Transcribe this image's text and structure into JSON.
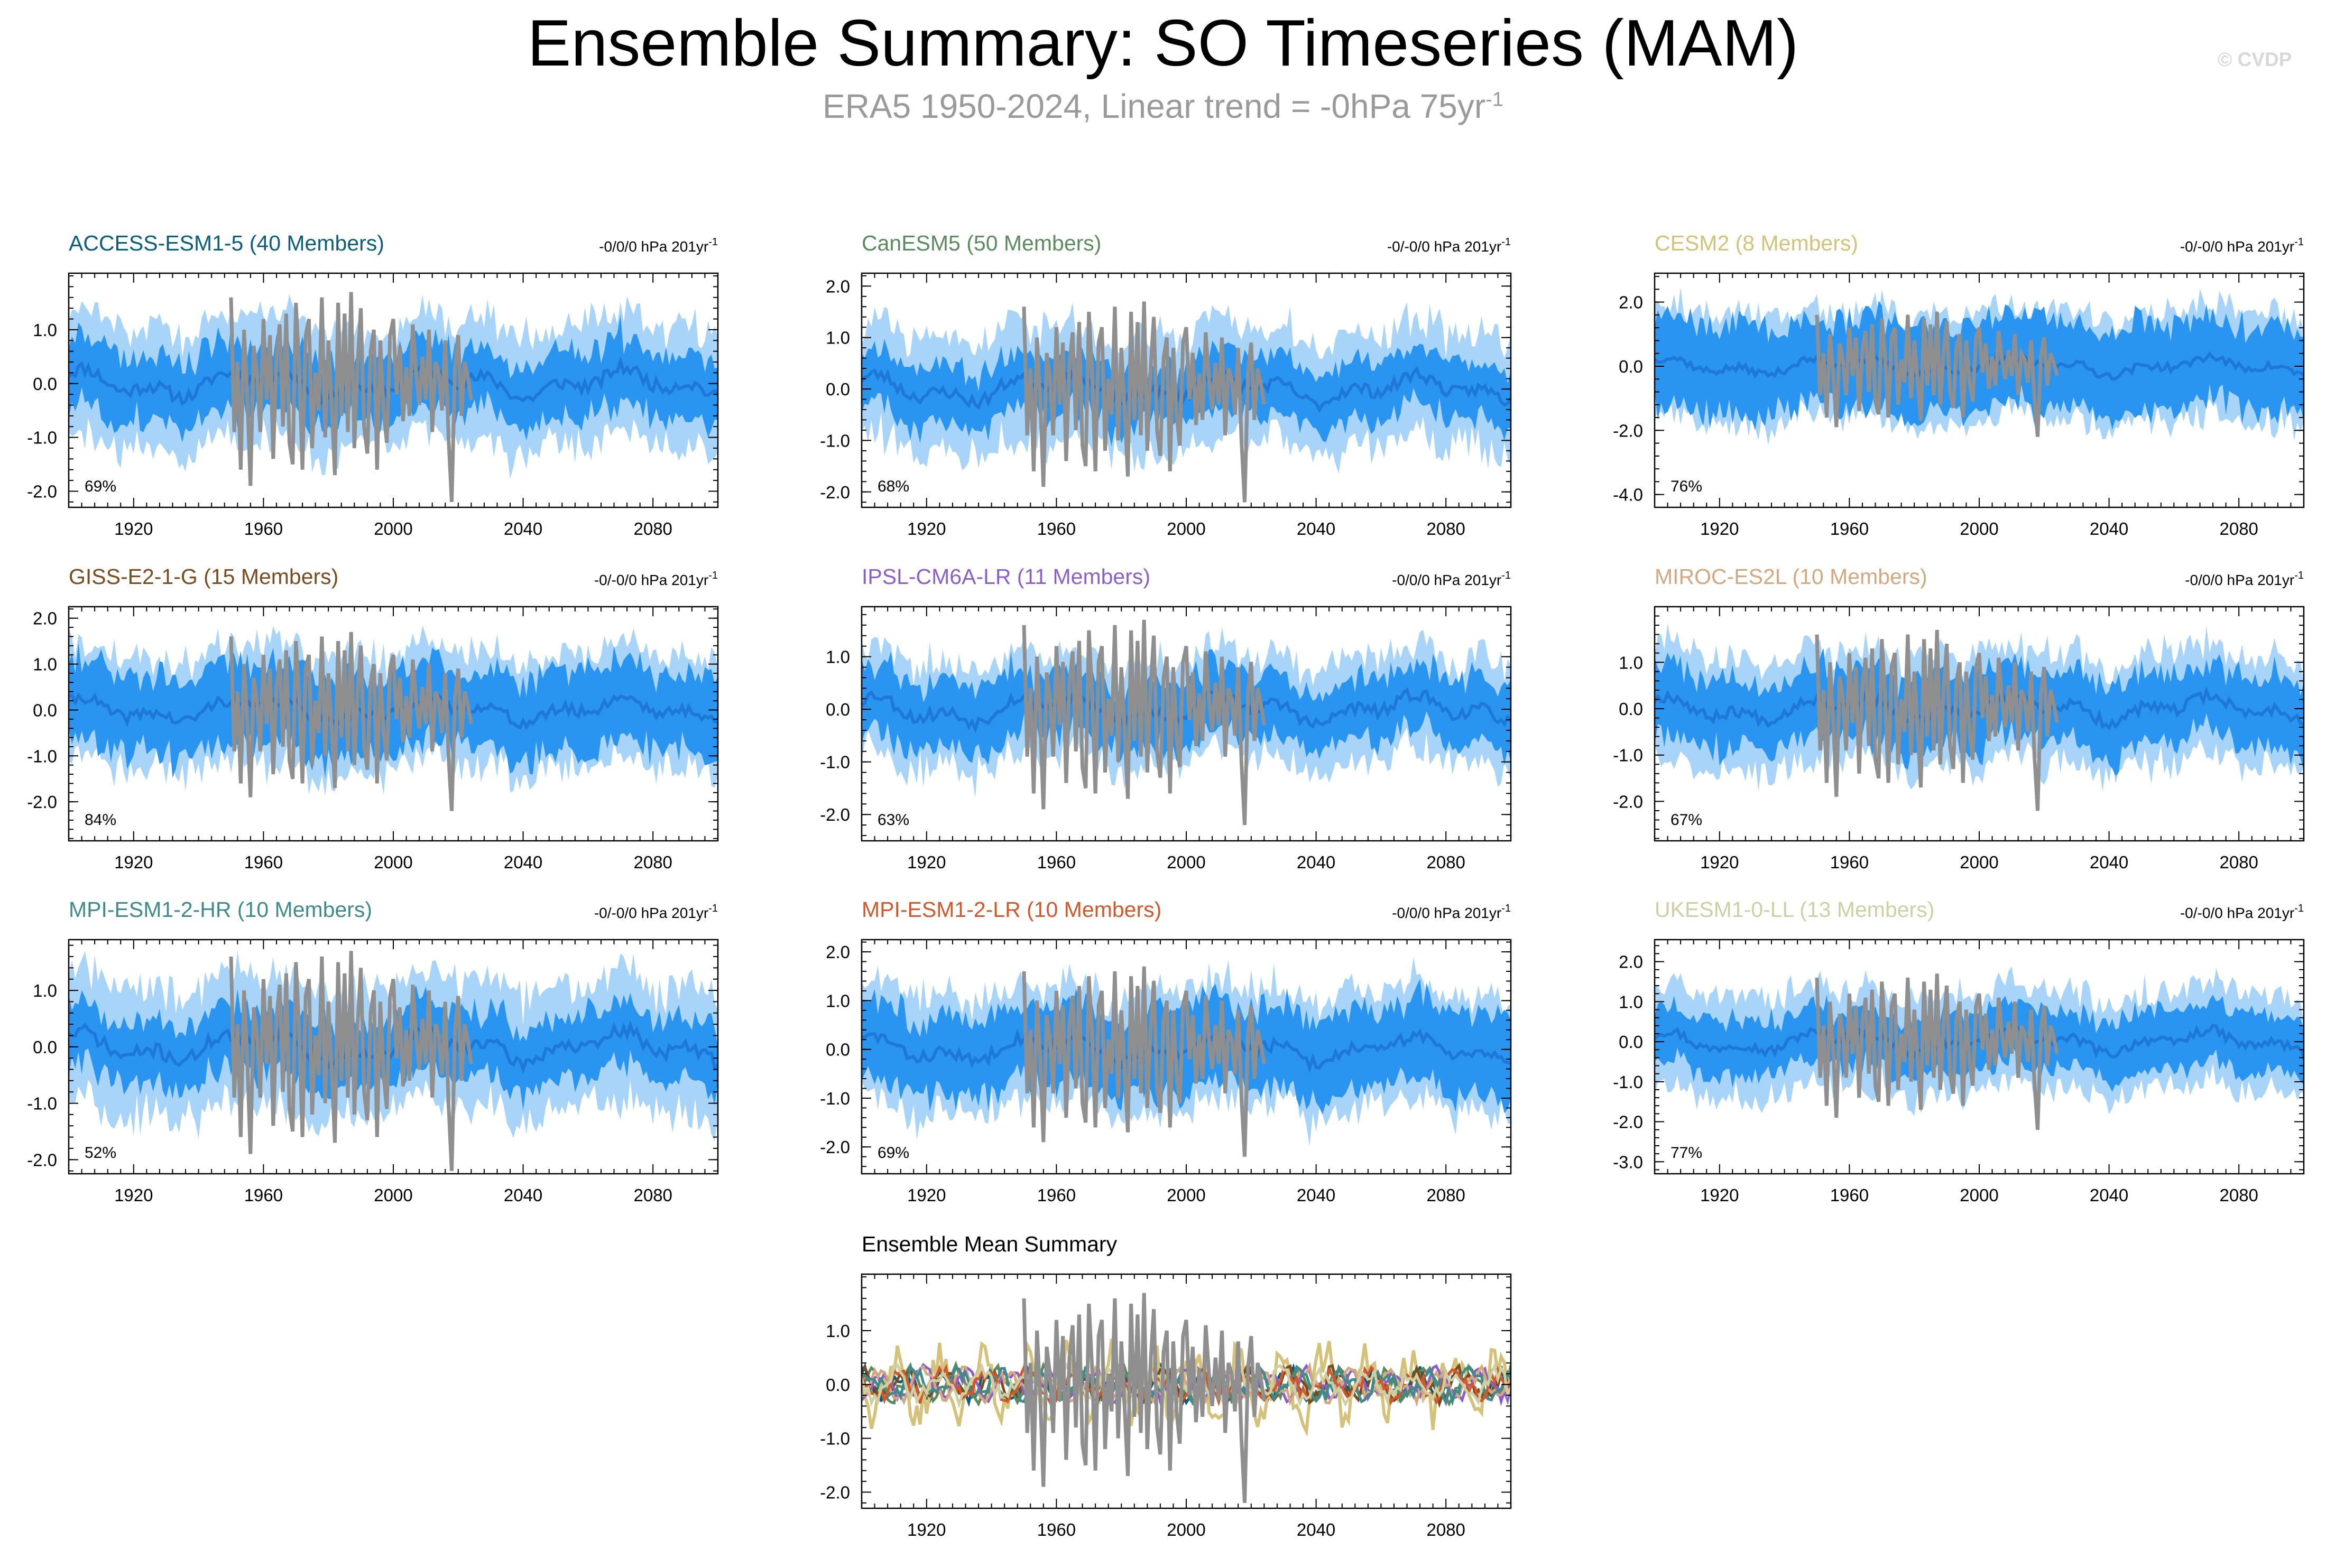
{
  "header": {
    "title": "Ensemble Summary: SO Timeseries (MAM)",
    "subtitle_main": "ERA5 1950-2024, Linear trend = -0hPa 75yr",
    "subtitle_exp": "-1",
    "copyright": "© CVDP"
  },
  "colors": {
    "band_outer": "#a9d4fa",
    "band_inner": "#2a95f0",
    "ens_mean": "#1e78d8",
    "obs": "#8f8f8f",
    "axis": "#000000"
  },
  "chart_data": [
    {
      "type": "area",
      "title": "ACCESS-ESM1-5 (40 Members)",
      "title_color": "#0b5d7a",
      "trend_label": "-0/0/0 hPa 201yr",
      "trend_exp": "-1",
      "pct_label": "69%",
      "xlim": [
        1900,
        2100
      ],
      "ylim": [
        -2.3,
        2.05
      ],
      "yticks": [
        1.0,
        0.0,
        -1.0,
        -2.0
      ],
      "ytick_labels": [
        "1.0",
        "0.0",
        "-1.0",
        "-2.0"
      ],
      "xticks": [
        1920,
        1960,
        2000,
        2040,
        2080
      ],
      "xtick_labels": [
        "1920",
        "1960",
        "2000",
        "2040",
        "2080"
      ],
      "outer_half_width": 1.1,
      "inner_half_width": 0.6,
      "seed": 11
    },
    {
      "type": "area",
      "title": "CanESM5 (50 Members)",
      "title_color": "#5b8a5e",
      "trend_label": "-0/-0/0 hPa 201yr",
      "trend_exp": "-1",
      "pct_label": "68%",
      "xlim": [
        1900,
        2100
      ],
      "ylim": [
        -2.3,
        2.25
      ],
      "yticks": [
        2.0,
        1.0,
        0.0,
        -1.0,
        -2.0
      ],
      "ytick_labels": [
        "2.0",
        "1.0",
        "0.0",
        "-1.0",
        "-2.0"
      ],
      "xticks": [
        1920,
        1960,
        2000,
        2040,
        2080
      ],
      "xtick_labels": [
        "1920",
        "1960",
        "2000",
        "2040",
        "2080"
      ],
      "outer_half_width": 1.1,
      "inner_half_width": 0.55,
      "seed": 23
    },
    {
      "type": "area",
      "title": "CESM2 (8 Members)",
      "title_color": "#d4c27a",
      "trend_label": "-0/-0/0 hPa 201yr",
      "trend_exp": "-1",
      "pct_label": "76%",
      "xlim": [
        1900,
        2100
      ],
      "ylim": [
        -4.4,
        2.9
      ],
      "yticks": [
        2.0,
        0.0,
        -2.0,
        -4.0
      ],
      "ytick_labels": [
        "2.0",
        "0.0",
        "-2.0",
        "-4.0"
      ],
      "xticks": [
        1920,
        1960,
        2000,
        2040,
        2080
      ],
      "xtick_labels": [
        "1920",
        "1960",
        "2000",
        "2040",
        "2080"
      ],
      "outer_half_width": 1.7,
      "inner_half_width": 1.35,
      "seed": 37
    },
    {
      "type": "area",
      "title": "GISS-E2-1-G (15 Members)",
      "title_color": "#7a4b1f",
      "trend_label": "-0/-0/0 hPa 201yr",
      "trend_exp": "-1",
      "pct_label": "84%",
      "xlim": [
        1900,
        2100
      ],
      "ylim": [
        -2.85,
        2.25
      ],
      "yticks": [
        2.0,
        1.0,
        0.0,
        -1.0,
        -2.0
      ],
      "ytick_labels": [
        "2.0",
        "1.0",
        "0.0",
        "-1.0",
        "-2.0"
      ],
      "xticks": [
        1920,
        1960,
        2000,
        2040,
        2080
      ],
      "xtick_labels": [
        "1920",
        "1960",
        "2000",
        "2040",
        "2080"
      ],
      "outer_half_width": 1.25,
      "inner_half_width": 0.85,
      "seed": 41
    },
    {
      "type": "area",
      "title": "IPSL-CM6A-LR (11 Members)",
      "title_color": "#8a5fc7",
      "trend_label": "-0/0/0 hPa 201yr",
      "trend_exp": "-1",
      "pct_label": "63%",
      "xlim": [
        1900,
        2100
      ],
      "ylim": [
        -2.5,
        1.95
      ],
      "yticks": [
        1.0,
        0.0,
        -1.0,
        -2.0
      ],
      "ytick_labels": [
        "1.0",
        "0.0",
        "-1.0",
        "-2.0"
      ],
      "xticks": [
        1920,
        1960,
        2000,
        2040,
        2080
      ],
      "xtick_labels": [
        "1920",
        "1960",
        "2000",
        "2040",
        "2080"
      ],
      "outer_half_width": 1.0,
      "inner_half_width": 0.6,
      "seed": 53
    },
    {
      "type": "area",
      "title": "MIROC-ES2L (10 Members)",
      "title_color": "#d3a77f",
      "trend_label": "-0/0/0 hPa 201yr",
      "trend_exp": "-1",
      "pct_label": "67%",
      "xlim": [
        1900,
        2100
      ],
      "ylim": [
        -2.85,
        2.2
      ],
      "yticks": [
        1.0,
        0.0,
        -1.0,
        -2.0
      ],
      "ytick_labels": [
        "1.0",
        "0.0",
        "-1.0",
        "-2.0"
      ],
      "xticks": [
        1920,
        1960,
        2000,
        2040,
        2080
      ],
      "xtick_labels": [
        "1920",
        "1960",
        "2000",
        "2040",
        "2080"
      ],
      "outer_half_width": 1.2,
      "inner_half_width": 0.75,
      "seed": 67
    },
    {
      "type": "area",
      "title": "MPI-ESM1-2-HR (10 Members)",
      "title_color": "#3e8a8c",
      "trend_label": "-0/-0/0 hPa 201yr",
      "trend_exp": "-1",
      "pct_label": "52%",
      "xlim": [
        1900,
        2100
      ],
      "ylim": [
        -2.25,
        1.9
      ],
      "yticks": [
        1.0,
        0.0,
        -1.0,
        -2.0
      ],
      "ytick_labels": [
        "1.0",
        "0.0",
        "-1.0",
        "-2.0"
      ],
      "xticks": [
        1920,
        1960,
        2000,
        2040,
        2080
      ],
      "xtick_labels": [
        "1920",
        "1960",
        "2000",
        "2040",
        "2080"
      ],
      "outer_half_width": 1.1,
      "inner_half_width": 0.55,
      "seed": 71
    },
    {
      "type": "area",
      "title": "MPI-ESM1-2-LR (10 Members)",
      "title_color": "#d0582a",
      "trend_label": "-0/0/0 hPa 201yr",
      "trend_exp": "-1",
      "pct_label": "69%",
      "xlim": [
        1900,
        2100
      ],
      "ylim": [
        -2.55,
        2.25
      ],
      "yticks": [
        2.0,
        1.0,
        0.0,
        -1.0,
        -2.0
      ],
      "ytick_labels": [
        "2.0",
        "1.0",
        "0.0",
        "-1.0",
        "-2.0"
      ],
      "xticks": [
        1920,
        1960,
        2000,
        2040,
        2080
      ],
      "xtick_labels": [
        "1920",
        "1960",
        "2000",
        "2040",
        "2080"
      ],
      "outer_half_width": 1.2,
      "inner_half_width": 0.8,
      "seed": 83
    },
    {
      "type": "area",
      "title": "UKESM1-0-LL (13 Members)",
      "title_color": "#cfcfa4",
      "trend_label": "-0/-0/0 hPa 201yr",
      "trend_exp": "-1",
      "pct_label": "77%",
      "xlim": [
        1900,
        2100
      ],
      "ylim": [
        -3.3,
        2.55
      ],
      "yticks": [
        2.0,
        1.0,
        0.0,
        -1.0,
        -2.0,
        -3.0
      ],
      "ytick_labels": [
        "2.0",
        "1.0",
        "0.0",
        "-1.0",
        "-2.0",
        "-3.0"
      ],
      "xticks": [
        1920,
        1960,
        2000,
        2040,
        2080
      ],
      "xtick_labels": [
        "1920",
        "1960",
        "2000",
        "2040",
        "2080"
      ],
      "outer_half_width": 1.2,
      "inner_half_width": 0.7,
      "seed": 97
    },
    {
      "type": "line",
      "title": "Ensemble Mean Summary",
      "title_color": "#000000",
      "xlim": [
        1900,
        2100
      ],
      "ylim": [
        -2.3,
        2.05
      ],
      "yticks": [
        1.0,
        0.0,
        -1.0,
        -2.0
      ],
      "ytick_labels": [
        "1.0",
        "0.0",
        "-1.0",
        "-2.0"
      ],
      "xticks": [
        1920,
        1960,
        2000,
        2040,
        2080
      ],
      "xtick_labels": [
        "1920",
        "1960",
        "2000",
        "2040",
        "2080"
      ],
      "series_colors": [
        "#0b5d7a",
        "#5b8a5e",
        "#d4c27a",
        "#7a4b1f",
        "#8a5fc7",
        "#d3a77f",
        "#3e8a8c",
        "#d0582a",
        "#cfcfa4"
      ],
      "seed": 101
    }
  ],
  "observations": {
    "name": "ERA5",
    "years": [
      1950,
      1951,
      1952,
      1953,
      1954,
      1955,
      1956,
      1957,
      1958,
      1959,
      1960,
      1961,
      1962,
      1963,
      1964,
      1965,
      1966,
      1967,
      1968,
      1969,
      1970,
      1971,
      1972,
      1973,
      1974,
      1975,
      1976,
      1977,
      1978,
      1979,
      1980,
      1981,
      1982,
      1983,
      1984,
      1985,
      1986,
      1987,
      1988,
      1989,
      1990,
      1991,
      1992,
      1993,
      1994,
      1995,
      1996,
      1997,
      1998,
      1999,
      2000,
      2001,
      2002,
      2003,
      2004,
      2005,
      2006,
      2007,
      2008,
      2009,
      2010,
      2011,
      2012,
      2013,
      2014,
      2015,
      2016,
      2017,
      2018,
      2019,
      2020,
      2021,
      2022,
      2023,
      2024
    ],
    "values": [
      1.6,
      -0.9,
      0.4,
      -1.6,
      1.0,
      -0.2,
      -1.9,
      0.7,
      0.2,
      -0.9,
      1.2,
      -0.3,
      0.9,
      -1.4,
      0.5,
      1.1,
      -0.8,
      1.3,
      -1.1,
      -1.5,
      1.5,
      0.3,
      -1.6,
      0.9,
      1.2,
      -1.2,
      0.2,
      -0.5,
      1.6,
      -1.0,
      0.8,
      -0.4,
      -1.7,
      1.5,
      -0.6,
      1.3,
      -0.9,
      1.7,
      -1.2,
      0.4,
      1.4,
      -0.8,
      -1.3,
      0.6,
      1.0,
      -1.6,
      0.8,
      -0.5,
      -1.1,
      0.9,
      1.2,
      -0.2,
      0.7,
      -0.7,
      0.3,
      -0.6,
      1.1,
      0.2,
      -0.4,
      0.5,
      -0.3,
      1.0,
      -0.9,
      0.4,
      0.2,
      -0.5,
      0.8,
      -1.0,
      -2.2,
      0.3,
      0.9,
      -0.6,
      0.4,
      0.1,
      -0.3
    ]
  }
}
